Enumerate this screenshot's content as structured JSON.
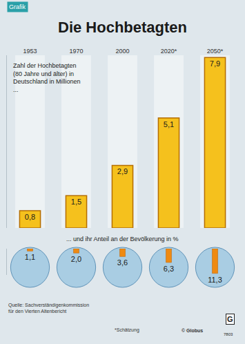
{
  "chart_data": [
    {
      "type": "bar",
      "title": "Die Hochbetagten",
      "subtitle": "Zahl der Hochbetagten (80 Jahre und älter) in Deutschland in Millionen ...",
      "categories": [
        "1953",
        "1970",
        "2000",
        "2020*",
        "2050*"
      ],
      "values": [
        0.8,
        1.5,
        2.9,
        5.1,
        7.9
      ],
      "value_labels": [
        "0,8",
        "1,5",
        "2,9",
        "5,1",
        "7,9"
      ],
      "color": "#f5c11d",
      "ylim": [
        0,
        8
      ],
      "yticks": [],
      "grid": false,
      "data_labels": true,
      "tick_labels": "x"
    },
    {
      "type": "bar",
      "title": "... und ihr Anteil an der Bevölkerung in %",
      "categories": [
        "1953",
        "1970",
        "2000",
        "2020*",
        "2050*"
      ],
      "values": [
        1.1,
        2.0,
        3.6,
        6.3,
        11.3
      ],
      "value_labels": [
        "1,1",
        "2,0",
        "3,6",
        "6,3",
        "11,3"
      ],
      "color": "#ee8a12",
      "ylim": [
        0,
        12
      ],
      "yticks": [],
      "grid": false,
      "data_labels": true,
      "tick_labels": false
    }
  ],
  "texts": {
    "tag": "Grafik",
    "source": "Quelle: Sachverständigenkommission für den Vierten Altenbericht",
    "note": "*Schätzung",
    "credit": "© Globus",
    "logo": "G",
    "code": "7803"
  }
}
